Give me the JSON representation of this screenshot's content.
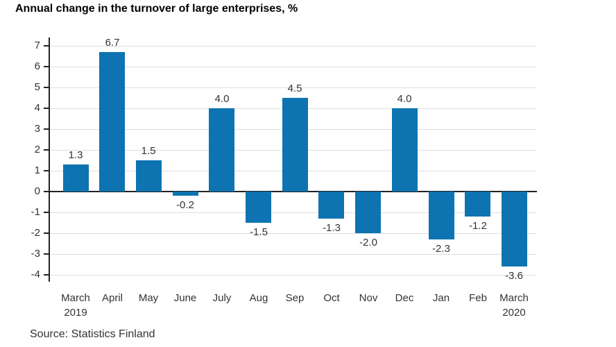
{
  "title": "Annual change in the turnover of large enterprises, %",
  "source": "Source: Statistics Finland",
  "colors": {
    "bar": "#0d74b1",
    "grid": "#dedede",
    "axis": "#222222",
    "tick_text": "#333333",
    "value_text": "#333333",
    "title_text": "#000000"
  },
  "chart_data": {
    "type": "bar",
    "title": "Annual change in the turnover of large enterprises, %",
    "categories": [
      "March\n2019",
      "April",
      "May",
      "June",
      "July",
      "Aug",
      "Sep",
      "Oct",
      "Nov",
      "Dec",
      "Jan",
      "Feb",
      "March\n2020"
    ],
    "values": [
      1.3,
      6.7,
      1.5,
      -0.2,
      4.0,
      -1.5,
      4.5,
      -1.3,
      -2.0,
      4.0,
      -2.3,
      -1.2,
      -3.6
    ],
    "xlabel": "",
    "ylabel": "",
    "ylim": [
      -4.4,
      7.4
    ],
    "yticks": [
      -4,
      -3,
      -2,
      -1,
      0,
      1,
      2,
      3,
      4,
      5,
      6,
      7
    ],
    "grid": true,
    "legend": "none",
    "value_labels": true,
    "source": "Source: Statistics Finland"
  }
}
